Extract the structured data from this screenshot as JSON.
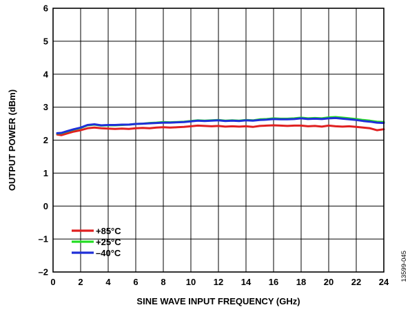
{
  "chart_data": {
    "type": "line",
    "title": "",
    "xlabel": "SINE WAVE INPUT FREQUENCY (GHz)",
    "ylabel": "OUTPUT POWER (dBm)",
    "xlim": [
      0,
      24
    ],
    "ylim": [
      -2,
      6
    ],
    "x_ticks": [
      "0",
      "2",
      "4",
      "6",
      "8",
      "10",
      "12",
      "14",
      "16",
      "18",
      "20",
      "22",
      "24"
    ],
    "y_ticks": [
      "6",
      "5",
      "4",
      "3",
      "2",
      "1",
      "0",
      "–1",
      "–2"
    ],
    "grid": true,
    "legend_position": "bottom-left",
    "figure_id": "13599-045",
    "x": [
      0.3,
      0.6,
      1,
      1.5,
      2,
      2.5,
      3,
      3.5,
      4,
      4.5,
      5,
      5.5,
      6,
      6.5,
      7,
      7.5,
      8,
      8.5,
      9,
      9.5,
      10,
      10.5,
      11,
      11.5,
      12,
      12.5,
      13,
      13.5,
      14,
      14.5,
      15,
      15.5,
      16,
      16.5,
      17,
      17.5,
      18,
      18.5,
      19,
      19.5,
      20,
      20.5,
      21,
      21.5,
      22,
      22.5,
      23,
      23.5,
      24
    ],
    "series": [
      {
        "name": "+85°C",
        "color": "#e02020",
        "values": [
          2.17,
          2.15,
          2.2,
          2.26,
          2.3,
          2.36,
          2.38,
          2.36,
          2.35,
          2.34,
          2.35,
          2.34,
          2.36,
          2.37,
          2.36,
          2.38,
          2.39,
          2.38,
          2.39,
          2.4,
          2.42,
          2.44,
          2.43,
          2.42,
          2.43,
          2.41,
          2.42,
          2.41,
          2.42,
          2.4,
          2.43,
          2.44,
          2.45,
          2.44,
          2.43,
          2.44,
          2.44,
          2.42,
          2.43,
          2.41,
          2.44,
          2.42,
          2.41,
          2.42,
          2.4,
          2.38,
          2.36,
          2.3,
          2.33
        ]
      },
      {
        "name": "+25°C",
        "color": "#22dd22",
        "values": [
          2.2,
          2.21,
          2.26,
          2.32,
          2.37,
          2.45,
          2.47,
          2.44,
          2.45,
          2.45,
          2.46,
          2.47,
          2.49,
          2.5,
          2.52,
          2.53,
          2.55,
          2.54,
          2.55,
          2.56,
          2.58,
          2.6,
          2.59,
          2.6,
          2.61,
          2.59,
          2.6,
          2.59,
          2.61,
          2.6,
          2.63,
          2.64,
          2.66,
          2.65,
          2.65,
          2.66,
          2.68,
          2.66,
          2.67,
          2.66,
          2.69,
          2.7,
          2.68,
          2.66,
          2.64,
          2.61,
          2.59,
          2.56,
          2.55
        ]
      },
      {
        "name": "–40°C",
        "color": "#1f2fd8",
        "values": [
          2.21,
          2.22,
          2.27,
          2.33,
          2.38,
          2.46,
          2.48,
          2.45,
          2.46,
          2.46,
          2.47,
          2.47,
          2.49,
          2.5,
          2.51,
          2.52,
          2.53,
          2.53,
          2.54,
          2.55,
          2.57,
          2.59,
          2.58,
          2.59,
          2.6,
          2.58,
          2.59,
          2.58,
          2.6,
          2.59,
          2.61,
          2.62,
          2.64,
          2.63,
          2.63,
          2.64,
          2.66,
          2.64,
          2.65,
          2.64,
          2.66,
          2.67,
          2.65,
          2.63,
          2.61,
          2.58,
          2.56,
          2.53,
          2.52
        ]
      }
    ]
  }
}
